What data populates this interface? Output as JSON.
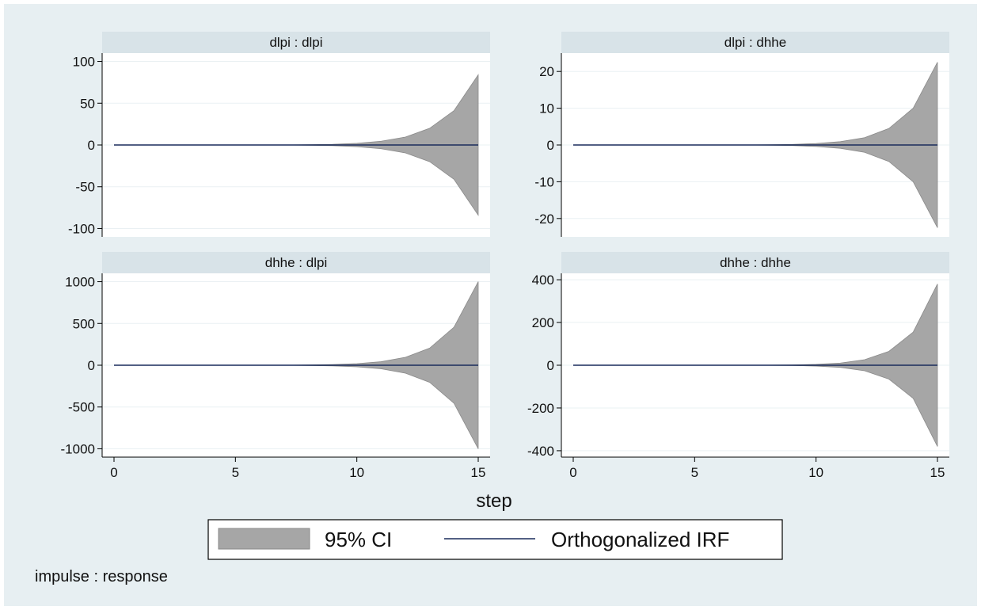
{
  "chart_data": {
    "type": "area",
    "graph_type": "impulse response function (Stata irf graph)",
    "colors": {
      "outer_background": "#e7eff2",
      "panel_title_background": "#d8e3e8",
      "plot_background": "#ffffff",
      "gridline": "#eaf0f3",
      "ci_fill": "#a6a6a6",
      "ci_stroke": "#8a8a8a",
      "irf_line": "#1a2c5b"
    },
    "xlabel": "step",
    "note": "impulse : response",
    "legend": {
      "placement": "bottom-center",
      "items": [
        {
          "label": "95% CI",
          "kind": "area"
        },
        {
          "label": "Orthogonalized IRF",
          "kind": "line"
        }
      ]
    },
    "panels": [
      {
        "title": "dlpi : dlpi",
        "x": [
          0,
          1,
          2,
          3,
          4,
          5,
          6,
          7,
          8,
          9,
          10,
          11,
          12,
          13,
          14,
          15
        ],
        "irf": [
          0,
          0,
          0,
          0,
          0,
          0,
          0,
          0,
          0,
          0,
          0,
          0,
          0,
          0,
          0,
          0
        ],
        "ci_upper": [
          0,
          0,
          0,
          0,
          0,
          0,
          0,
          0,
          0.3,
          0.8,
          2,
          4.5,
          9.5,
          20,
          41,
          84
        ],
        "ci_lower": [
          0,
          0,
          0,
          0,
          0,
          0,
          0,
          0,
          -0.3,
          -0.8,
          -2,
          -4.5,
          -9.5,
          -20,
          -41,
          -84
        ],
        "yticks": [
          -100,
          -50,
          0,
          50,
          100
        ],
        "ylim": [
          -110,
          110
        ],
        "xticks": [
          0,
          5,
          10,
          15
        ],
        "show_xticks": false
      },
      {
        "title": "dlpi : dhhe",
        "x": [
          0,
          1,
          2,
          3,
          4,
          5,
          6,
          7,
          8,
          9,
          10,
          11,
          12,
          13,
          14,
          15
        ],
        "irf": [
          0,
          0,
          0,
          0,
          0,
          0,
          0,
          0,
          0,
          0,
          0,
          0,
          0,
          0,
          0,
          0
        ],
        "ci_upper": [
          0,
          0,
          0,
          0,
          0,
          0,
          0,
          0,
          0.05,
          0.15,
          0.4,
          0.9,
          2,
          4.5,
          10,
          22.5
        ],
        "ci_lower": [
          0,
          0,
          0,
          0,
          0,
          0,
          0,
          0,
          -0.05,
          -0.15,
          -0.4,
          -0.9,
          -2,
          -4.5,
          -10,
          -22.5
        ],
        "yticks": [
          -20,
          -10,
          0,
          10,
          20
        ],
        "ylim": [
          -25,
          25
        ],
        "xticks": [
          0,
          5,
          10,
          15
        ],
        "show_xticks": false
      },
      {
        "title": "dhhe : dlpi",
        "x": [
          0,
          1,
          2,
          3,
          4,
          5,
          6,
          7,
          8,
          9,
          10,
          11,
          12,
          13,
          14,
          15
        ],
        "irf": [
          0,
          0,
          0,
          0,
          0,
          0,
          0,
          0,
          0,
          0,
          0,
          0,
          0,
          0,
          0,
          0
        ],
        "ci_upper": [
          0,
          0,
          0,
          0,
          0,
          0,
          0,
          0,
          3,
          8,
          19,
          42,
          95,
          205,
          455,
          1000
        ],
        "ci_lower": [
          0,
          0,
          0,
          0,
          0,
          0,
          0,
          0,
          -3,
          -8,
          -19,
          -42,
          -95,
          -205,
          -455,
          -1000
        ],
        "yticks": [
          -1000,
          -500,
          0,
          500,
          1000
        ],
        "ylim": [
          -1100,
          1100
        ],
        "xticks": [
          0,
          5,
          10,
          15
        ],
        "show_xticks": true
      },
      {
        "title": "dhhe : dhhe",
        "x": [
          0,
          1,
          2,
          3,
          4,
          5,
          6,
          7,
          8,
          9,
          10,
          11,
          12,
          13,
          14,
          15
        ],
        "irf": [
          0,
          0,
          0,
          0,
          0,
          0,
          0,
          0,
          0,
          0,
          0,
          0,
          0,
          0,
          0,
          0
        ],
        "ci_upper": [
          0,
          0,
          0,
          0,
          0,
          0,
          0,
          0,
          0.5,
          1.5,
          4,
          10,
          26,
          65,
          155,
          380
        ],
        "ci_lower": [
          0,
          0,
          0,
          0,
          0,
          0,
          0,
          0,
          -0.5,
          -1.5,
          -4,
          -10,
          -26,
          -65,
          -155,
          -380
        ],
        "yticks": [
          -400,
          -200,
          0,
          200,
          400
        ],
        "ylim": [
          -430,
          430
        ],
        "xticks": [
          0,
          5,
          10,
          15
        ],
        "show_xticks": true
      }
    ]
  }
}
